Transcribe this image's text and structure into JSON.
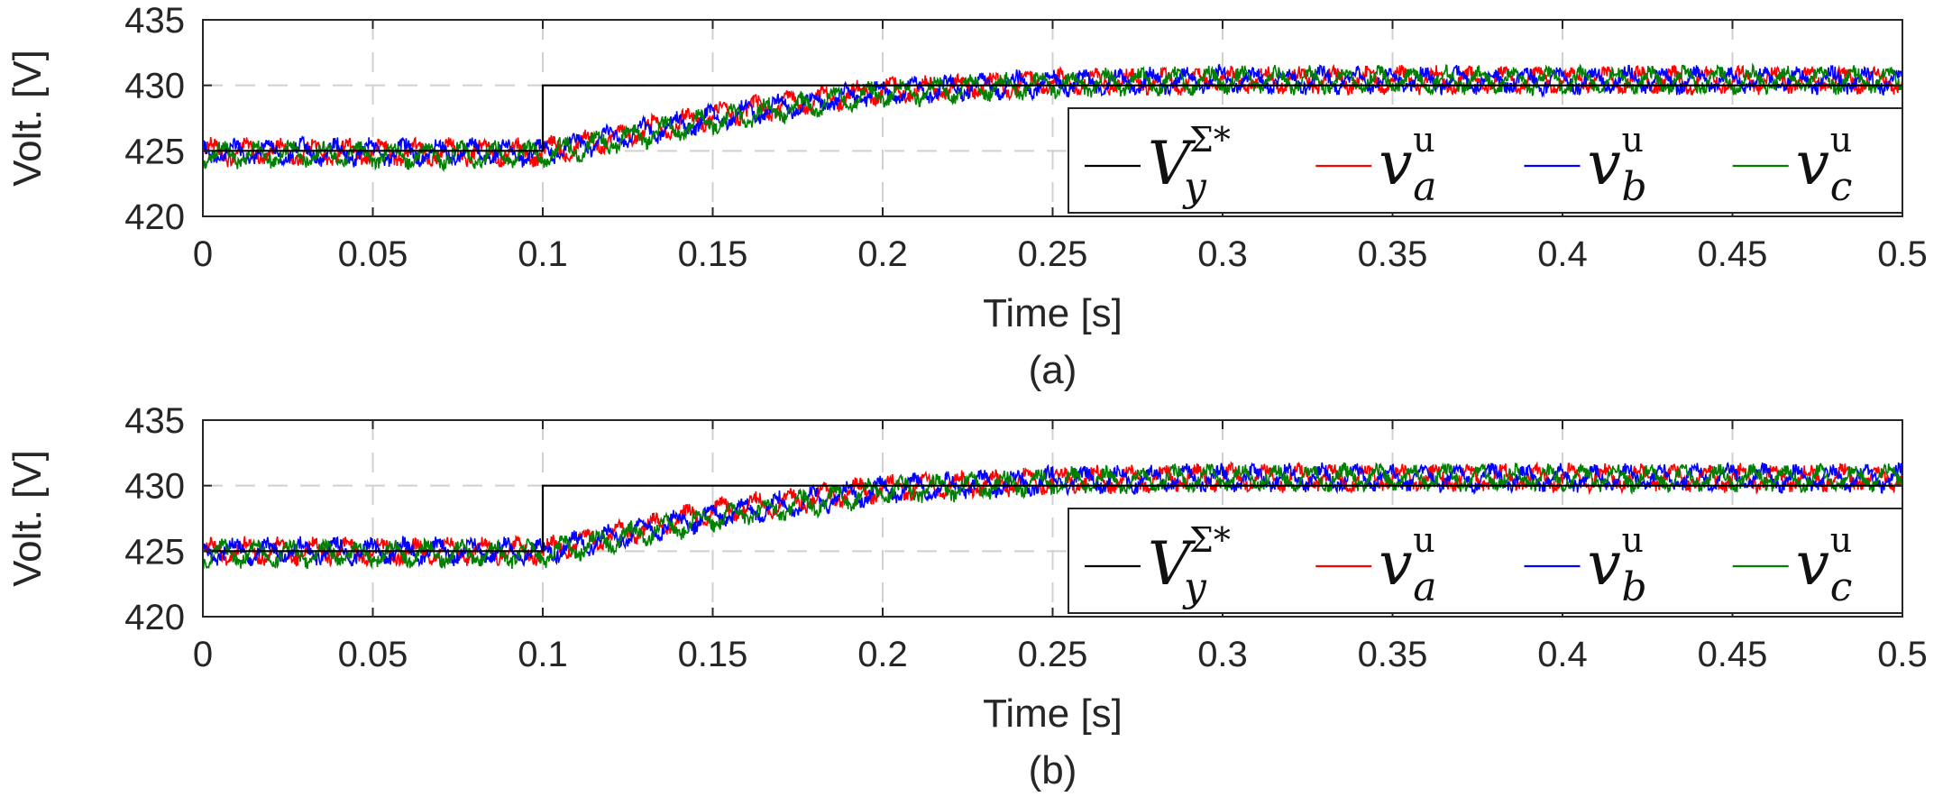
{
  "chart_data": [
    {
      "type": "line",
      "caption": "(a)",
      "xlabel": "Time [s]",
      "ylabel": "Volt. [V]",
      "xlim": [
        0,
        0.5
      ],
      "ylim": [
        420,
        435
      ],
      "xticks": [
        "0",
        "0.05",
        "0.1",
        "0.15",
        "0.2",
        "0.25",
        "0.3",
        "0.35",
        "0.4",
        "0.45",
        "0.5"
      ],
      "yticks": [
        "420",
        "425",
        "430",
        "435"
      ],
      "grid": "dashed",
      "legend_position": "bottom-right",
      "series": [
        {
          "name": "V_y^{Σ*}",
          "label_main": "V",
          "label_sup": "Σ*",
          "label_sub": "y",
          "color": "#000000",
          "kind": "reference",
          "x": [
            0,
            0.1,
            0.1,
            0.5
          ],
          "y": [
            425,
            425,
            430,
            430
          ]
        },
        {
          "name": "v_a^u",
          "label_main": "v",
          "label_sup": "u",
          "label_sub": "a",
          "color": "#ff0000",
          "kind": "ripple",
          "x": [
            0,
            0.1,
            0.15,
            0.2,
            0.25,
            0.3,
            0.5
          ],
          "y": [
            424.9,
            424.9,
            427.7,
            429.6,
            430.2,
            430.4,
            430.4
          ],
          "ripple_amplitude": 0.9
        },
        {
          "name": "v_b^u",
          "label_main": "v",
          "label_sup": "u",
          "label_sub": "b",
          "color": "#0000ff",
          "kind": "ripple",
          "x": [
            0,
            0.1,
            0.15,
            0.2,
            0.25,
            0.3,
            0.5
          ],
          "y": [
            424.9,
            424.9,
            427.5,
            429.5,
            430.2,
            430.4,
            430.4
          ],
          "ripple_amplitude": 0.9
        },
        {
          "name": "v_c^u",
          "label_main": "v",
          "label_sup": "u",
          "label_sub": "c",
          "color": "#008000",
          "kind": "ripple",
          "x": [
            0,
            0.1,
            0.15,
            0.2,
            0.25,
            0.3,
            0.5
          ],
          "y": [
            424.7,
            424.7,
            427.3,
            429.4,
            430.1,
            430.4,
            430.4
          ],
          "ripple_amplitude": 0.9
        }
      ]
    },
    {
      "type": "line",
      "caption": "(b)",
      "xlabel": "Time [s]",
      "ylabel": "Volt. [V]",
      "xlim": [
        0,
        0.5
      ],
      "ylim": [
        420,
        435
      ],
      "xticks": [
        "0",
        "0.05",
        "0.1",
        "0.15",
        "0.2",
        "0.25",
        "0.3",
        "0.35",
        "0.4",
        "0.45",
        "0.5"
      ],
      "yticks": [
        "420",
        "425",
        "430",
        "435"
      ],
      "grid": "dashed",
      "legend_position": "bottom-right",
      "series": [
        {
          "name": "V_y^{Σ*}",
          "label_main": "V",
          "label_sup": "Σ*",
          "label_sub": "y",
          "color": "#000000",
          "kind": "reference",
          "x": [
            0,
            0.1,
            0.1,
            0.5
          ],
          "y": [
            425,
            425,
            430,
            430
          ]
        },
        {
          "name": "v_a^u",
          "label_main": "v",
          "label_sup": "u",
          "label_sub": "a",
          "color": "#ff0000",
          "kind": "ripple",
          "x": [
            0,
            0.1,
            0.15,
            0.2,
            0.25,
            0.3,
            0.5
          ],
          "y": [
            425.0,
            425.0,
            428.0,
            429.8,
            430.4,
            430.6,
            430.6
          ],
          "ripple_amplitude": 0.9
        },
        {
          "name": "v_b^u",
          "label_main": "v",
          "label_sup": "u",
          "label_sub": "b",
          "color": "#0000ff",
          "kind": "ripple",
          "x": [
            0,
            0.1,
            0.15,
            0.2,
            0.25,
            0.3,
            0.5
          ],
          "y": [
            425.0,
            425.0,
            427.7,
            429.7,
            430.4,
            430.6,
            430.6
          ],
          "ripple_amplitude": 0.9
        },
        {
          "name": "v_c^u",
          "label_main": "v",
          "label_sup": "u",
          "label_sub": "c",
          "color": "#008000",
          "kind": "ripple",
          "x": [
            0,
            0.1,
            0.15,
            0.2,
            0.25,
            0.3,
            0.5
          ],
          "y": [
            424.8,
            424.8,
            427.5,
            429.6,
            430.3,
            430.6,
            430.6
          ],
          "ripple_amplitude": 0.9
        }
      ]
    }
  ]
}
